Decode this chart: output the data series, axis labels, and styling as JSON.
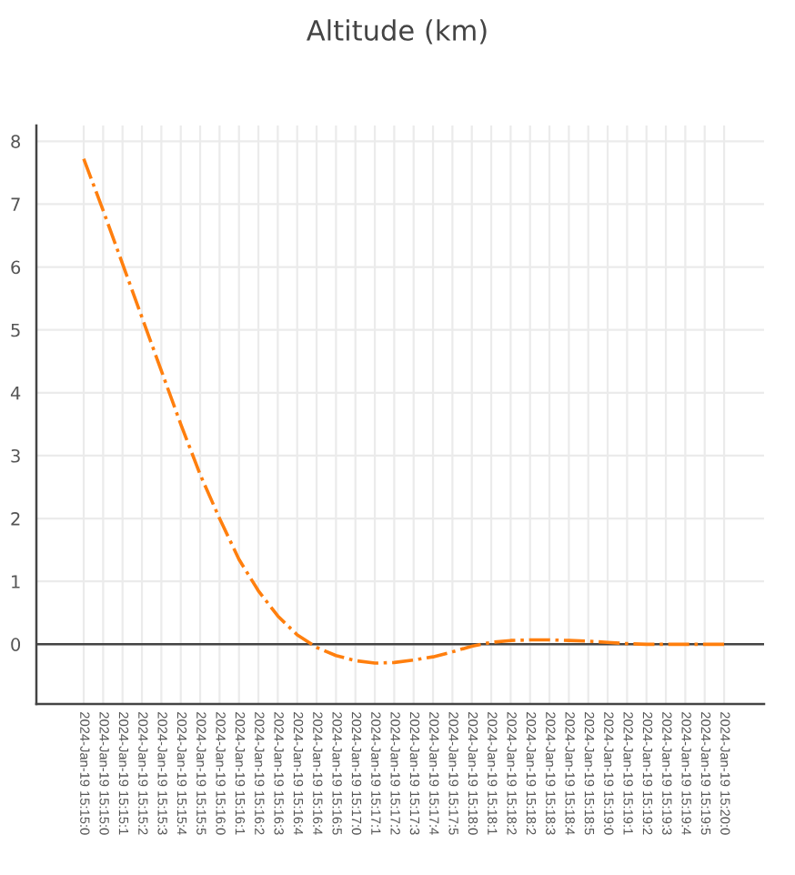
{
  "chart_data": {
    "type": "line",
    "title": "Altitude (km)",
    "categories": [
      "2024-Jan-19 15:15:0",
      "2024-Jan-19 15:15:0",
      "2024-Jan-19 15:15:1",
      "2024-Jan-19 15:15:2",
      "2024-Jan-19 15:15:3",
      "2024-Jan-19 15:15:4",
      "2024-Jan-19 15:15:5",
      "2024-Jan-19 15:16:0",
      "2024-Jan-19 15:16:1",
      "2024-Jan-19 15:16:2",
      "2024-Jan-19 15:16:3",
      "2024-Jan-19 15:16:4",
      "2024-Jan-19 15:16:4",
      "2024-Jan-19 15:16:5",
      "2024-Jan-19 15:17:0",
      "2024-Jan-19 15:17:1",
      "2024-Jan-19 15:17:2",
      "2024-Jan-19 15:17:3",
      "2024-Jan-19 15:17:4",
      "2024-Jan-19 15:17:5",
      "2024-Jan-19 15:18:0",
      "2024-Jan-19 15:18:1",
      "2024-Jan-19 15:18:2",
      "2024-Jan-19 15:18:2",
      "2024-Jan-19 15:18:3",
      "2024-Jan-19 15:18:4",
      "2024-Jan-19 15:18:5",
      "2024-Jan-19 15:19:0",
      "2024-Jan-19 15:19:1",
      "2024-Jan-19 15:19:2",
      "2024-Jan-19 15:19:3",
      "2024-Jan-19 15:19:4",
      "2024-Jan-19 15:19:5",
      "2024-Jan-19 15:20:0"
    ],
    "series": [
      {
        "color": "#ff7f0e",
        "values": [
          7.72,
          6.9,
          6.05,
          5.2,
          4.35,
          3.5,
          2.7,
          2.0,
          1.35,
          0.85,
          0.45,
          0.15,
          -0.05,
          -0.18,
          -0.26,
          -0.3,
          -0.29,
          -0.25,
          -0.2,
          -0.12,
          -0.03,
          0.03,
          0.06,
          0.07,
          0.07,
          0.06,
          0.05,
          0.03,
          0.01,
          0,
          0,
          0,
          0,
          0
        ]
      }
    ],
    "ylim": [
      -0.95,
      8.25
    ],
    "yticks": [
      0,
      1,
      2,
      3,
      4,
      5,
      6,
      7,
      8
    ],
    "ref_lines": [
      {
        "axis": "y",
        "value": 0,
        "color": "#444444"
      }
    ],
    "grid": true,
    "line_style": "dashdot",
    "marker": "none"
  }
}
